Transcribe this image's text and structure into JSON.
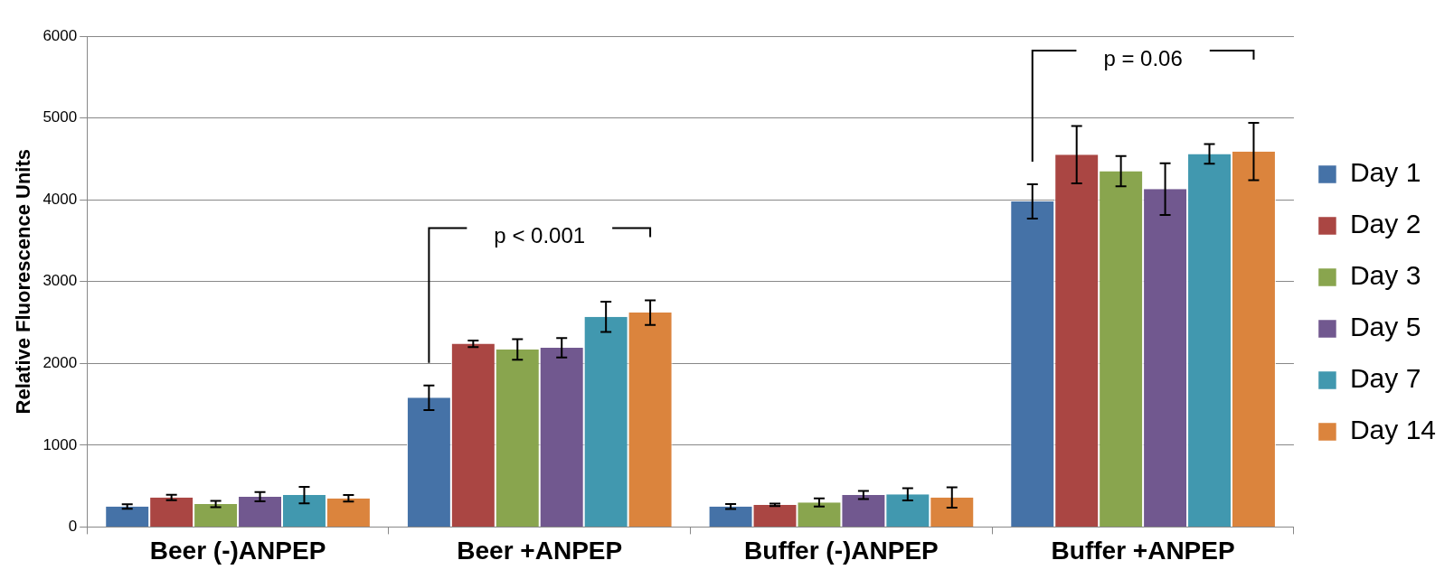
{
  "chart_data": {
    "type": "bar",
    "ylabel": "Relative Fluorescence Units",
    "categories": [
      "Beer (-)ANPEP",
      "Beer +ANPEP",
      "Buffer (-)ANPEP",
      "Buffer +ANPEP"
    ],
    "series": [
      {
        "name": "Day 1",
        "color": "#4572a7",
        "values": [
          250,
          1580,
          250,
          3980
        ],
        "errors": [
          28,
          150,
          30,
          210
        ]
      },
      {
        "name": "Day 2",
        "color": "#aa4643",
        "values": [
          360,
          2240,
          270,
          4550
        ],
        "errors": [
          33,
          40,
          15,
          350
        ]
      },
      {
        "name": "Day 3",
        "color": "#89a54e",
        "values": [
          280,
          2170,
          300,
          4350
        ],
        "errors": [
          38,
          125,
          50,
          185
        ]
      },
      {
        "name": "Day 5",
        "color": "#71588f",
        "values": [
          370,
          2190,
          390,
          4130
        ],
        "errors": [
          56,
          118,
          50,
          315
        ]
      },
      {
        "name": "Day 7",
        "color": "#4198af",
        "values": [
          390,
          2570,
          400,
          4560
        ],
        "errors": [
          100,
          185,
          75,
          120
        ]
      },
      {
        "name": "Day 14",
        "color": "#db843d",
        "values": [
          350,
          2620,
          360,
          4590
        ],
        "errors": [
          40,
          150,
          125,
          350
        ]
      }
    ],
    "ylim": [
      0,
      6000
    ],
    "yticks": [
      0,
      1000,
      2000,
      3000,
      4000,
      5000,
      6000
    ],
    "grid": "y",
    "legend": "right",
    "annotations": [
      "p < 0.001",
      "p = 0.06"
    ]
  }
}
